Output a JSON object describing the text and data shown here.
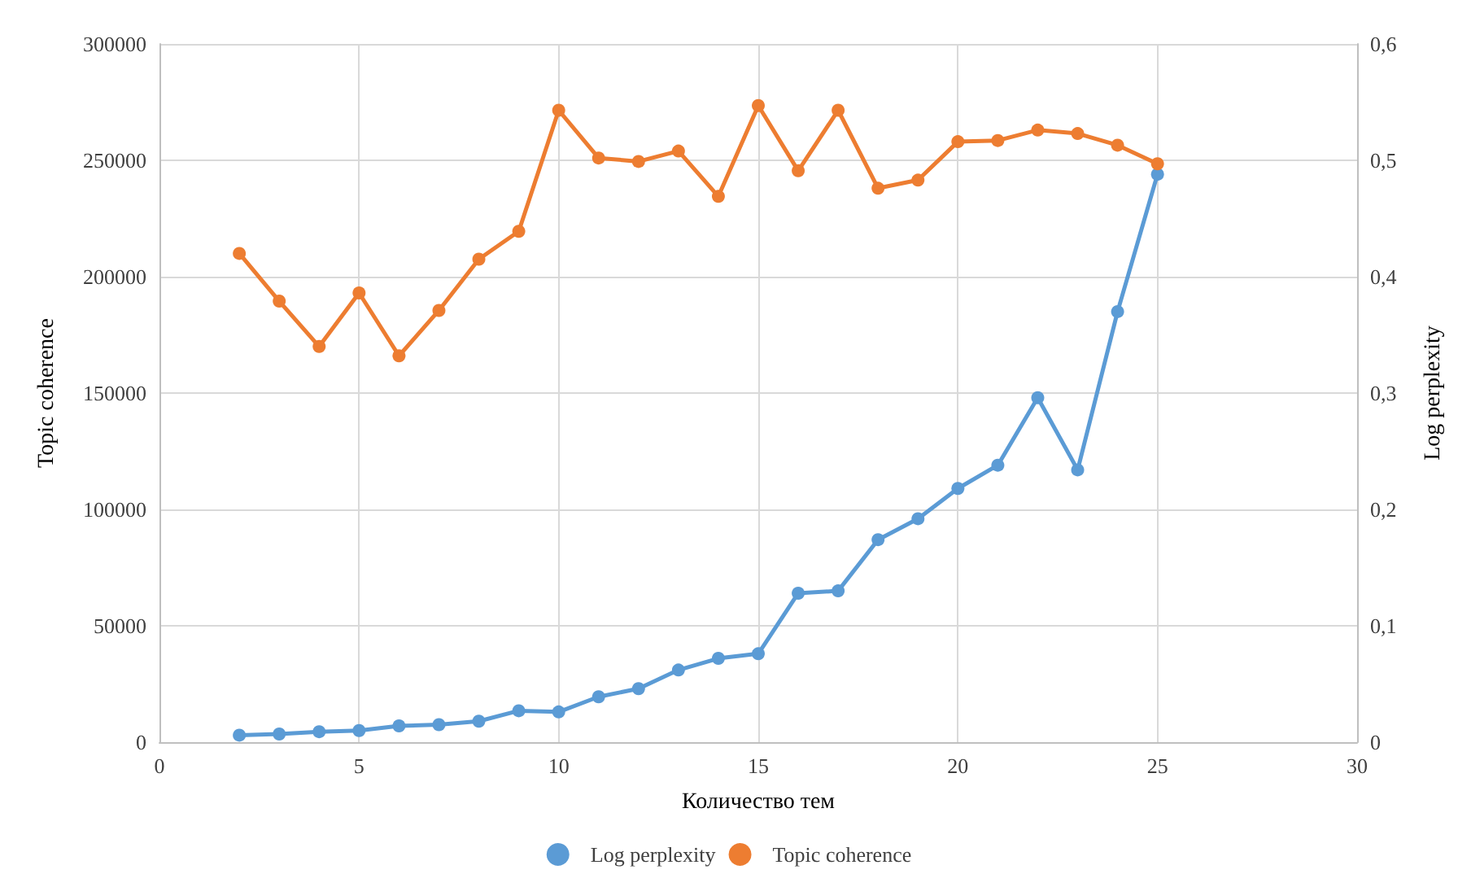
{
  "chart_data": {
    "type": "line",
    "xlabel": "Количество тем",
    "ylabel": "Topic coherence",
    "y2label": "Log perplexity",
    "x": [
      2,
      3,
      4,
      5,
      6,
      7,
      8,
      9,
      10,
      11,
      12,
      13,
      14,
      15,
      16,
      17,
      18,
      19,
      20,
      21,
      22,
      23,
      24,
      25
    ],
    "series": [
      {
        "name": "Log perplexity",
        "color": "#5b9bd5",
        "values": [
          3000,
          3500,
          4500,
          5000,
          7000,
          7500,
          9000,
          13500,
          13000,
          19500,
          23000,
          31000,
          36000,
          38000,
          64000,
          65000,
          87000,
          96000,
          109000,
          119000,
          148000,
          117000,
          185000,
          244000
        ]
      },
      {
        "name": "Topic coherence",
        "color": "#ed7d31",
        "axis": "y2",
        "values": [
          0.42,
          0.379,
          0.34,
          0.386,
          0.332,
          0.371,
          0.415,
          0.439,
          0.543,
          0.502,
          0.499,
          0.508,
          0.469,
          0.547,
          0.491,
          0.543,
          0.476,
          0.483,
          0.516,
          0.517,
          0.526,
          0.523,
          0.513,
          0.497
        ]
      }
    ],
    "xlim": [
      0,
      30
    ],
    "xticks": [
      0,
      5,
      10,
      15,
      20,
      25,
      30
    ],
    "ylim": [
      0,
      300000
    ],
    "yticks": [
      0,
      50000,
      100000,
      150000,
      200000,
      250000,
      300000
    ],
    "y2lim": [
      0,
      0.6
    ],
    "y2ticks": [
      {
        "value": 0,
        "label": "0"
      },
      {
        "value": 0.1,
        "label": "0,1"
      },
      {
        "value": 0.2,
        "label": "0,2"
      },
      {
        "value": 0.3,
        "label": "0,3"
      },
      {
        "value": 0.4,
        "label": "0,4"
      },
      {
        "value": 0.5,
        "label": "0,5"
      },
      {
        "value": 0.6,
        "label": "0,6"
      }
    ],
    "grid": true,
    "legend": "bottom",
    "marker": "circle",
    "line_style": "solid"
  }
}
